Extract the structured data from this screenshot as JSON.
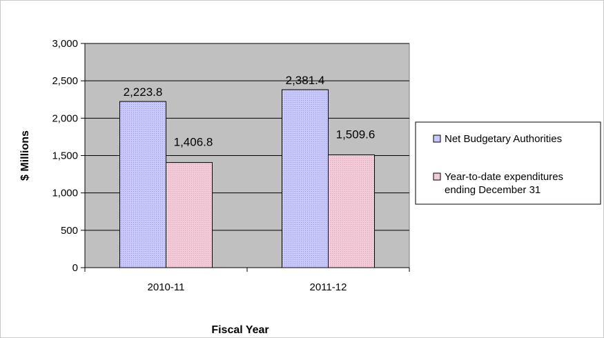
{
  "chart_data": {
    "type": "bar",
    "title": "",
    "xlabel": "Fiscal Year",
    "ylabel": "$ Millions",
    "categories": [
      "2010-11",
      "2011-12"
    ],
    "series": [
      {
        "name": "Net Budgetary Authorities",
        "values": [
          2223.8,
          2381.4
        ],
        "labels": [
          "2,223.8",
          "2,381.4"
        ],
        "color": "#c8c8fc"
      },
      {
        "name_lines": [
          "Year-to-date expenditures",
          "ending December 31"
        ],
        "values": [
          1406.8,
          1509.6
        ],
        "labels": [
          "1,406.8",
          "1,509.6"
        ],
        "color": "#f2cad8"
      }
    ],
    "ylim": [
      0,
      3000
    ],
    "yticks": [
      0,
      500,
      1000,
      1500,
      2000,
      2500,
      3000
    ],
    "ytick_labels": [
      "0",
      "500",
      "1,000",
      "1,500",
      "2,000",
      "2,500",
      "3,000"
    ],
    "grid": true,
    "plot_background": "#c0c0c0",
    "legend_position": "right"
  }
}
